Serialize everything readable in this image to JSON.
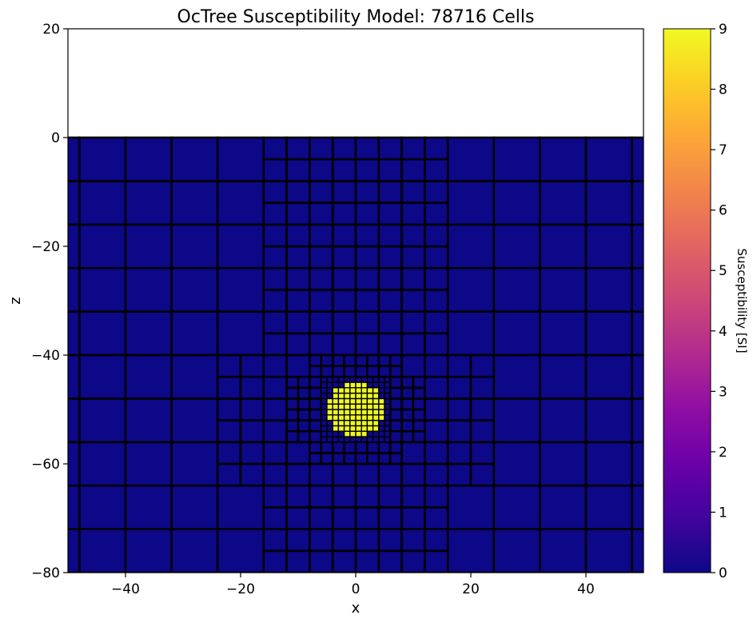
{
  "chart_data": {
    "type": "heatmap",
    "title": "OcTree Susceptibility Model: 78716 Cells",
    "xlabel": "x",
    "ylabel": "z",
    "xlim": [
      -50,
      50
    ],
    "ylim": [
      -80,
      20
    ],
    "xticks": [
      {
        "value": -40,
        "label": "−40"
      },
      {
        "value": -20,
        "label": "−20"
      },
      {
        "value": 0,
        "label": "0"
      },
      {
        "value": 20,
        "label": "20"
      },
      {
        "value": 40,
        "label": "40"
      }
    ],
    "yticks": [
      {
        "value": 20,
        "label": "20"
      },
      {
        "value": 0,
        "label": "0"
      },
      {
        "value": -20,
        "label": "−20"
      },
      {
        "value": -40,
        "label": "−40"
      },
      {
        "value": -60,
        "label": "−60"
      },
      {
        "value": -80,
        "label": "−80"
      }
    ],
    "colorbar": {
      "label": "Susceptibility [SI]",
      "colormap": "plasma",
      "range": [
        0,
        9
      ],
      "ticks": [
        "0",
        "1",
        "2",
        "3",
        "4",
        "5",
        "6",
        "7",
        "8",
        "9"
      ]
    },
    "background_value": 0,
    "anomaly": {
      "center": [
        0,
        -50
      ],
      "radius": 5,
      "value": 9
    },
    "mesh": {
      "top": 0,
      "bottom": -80,
      "refinement_center": [
        0,
        -50
      ],
      "finest_cell": 1
    },
    "colors": {
      "background_cell": "#0d0887",
      "anomaly_cell": "#f0f921",
      "cell_edge": "#000000"
    }
  }
}
